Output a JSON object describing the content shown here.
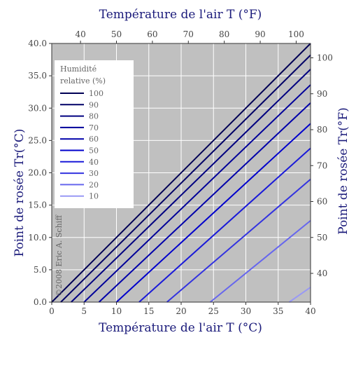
{
  "chart_data": {
    "type": "line",
    "title_top": "Température de l'air T (°F)",
    "xlabel": "Température de l'air T (°C)",
    "ylabel_left": "Point de rosée Tr(°C)",
    "ylabel_right": "Point de rosée Tr(°F)",
    "xlim": [
      0,
      40
    ],
    "ylim": [
      0,
      40
    ],
    "x_ticks": [
      0,
      5,
      10,
      15,
      20,
      25,
      30,
      35,
      40
    ],
    "y_ticks": [
      0,
      5,
      10,
      15,
      20,
      25,
      30,
      35,
      40
    ],
    "x_ticks_f": [
      40,
      50,
      60,
      70,
      80,
      90,
      100
    ],
    "y_ticks_f": [
      40,
      50,
      60,
      70,
      80,
      90,
      100
    ],
    "grid": true,
    "background": "#c0c0c0",
    "legend": {
      "title_lines": [
        "Humidité",
        "relative (%)"
      ],
      "position": "top-left"
    },
    "series": [
      {
        "name": "100",
        "color": "#000055",
        "width": 2,
        "x": [
          0,
          40
        ],
        "y": [
          0,
          40
        ]
      },
      {
        "name": "90",
        "color": "#000066",
        "width": 2,
        "x": [
          1.4,
          40
        ],
        "y": [
          0,
          38.2
        ]
      },
      {
        "name": "80",
        "color": "#000080",
        "width": 2,
        "x": [
          3.0,
          40
        ],
        "y": [
          0,
          36.0
        ]
      },
      {
        "name": "70",
        "color": "#000099",
        "width": 2,
        "x": [
          5.0,
          40
        ],
        "y": [
          0,
          33.6
        ]
      },
      {
        "name": "60",
        "color": "#0000aa",
        "width": 2,
        "x": [
          7.3,
          40
        ],
        "y": [
          0,
          30.8
        ]
      },
      {
        "name": "50",
        "color": "#0000cc",
        "width": 2,
        "x": [
          10.0,
          40
        ],
        "y": [
          0,
          27.6
        ]
      },
      {
        "name": "40",
        "color": "#1a1ad9",
        "width": 2,
        "x": [
          13.5,
          40
        ],
        "y": [
          0,
          23.8
        ]
      },
      {
        "name": "30",
        "color": "#3333e0",
        "width": 2,
        "x": [
          17.8,
          40
        ],
        "y": [
          0,
          19.0
        ]
      },
      {
        "name": "20",
        "color": "#6666ee",
        "width": 2,
        "x": [
          24.5,
          40
        ],
        "y": [
          0,
          12.6
        ]
      },
      {
        "name": "10",
        "color": "#9999f5",
        "width": 2,
        "x": [
          36.7,
          40
        ],
        "y": [
          0,
          2.3
        ]
      }
    ],
    "watermark": "©2008 Eric A. Schiff"
  }
}
